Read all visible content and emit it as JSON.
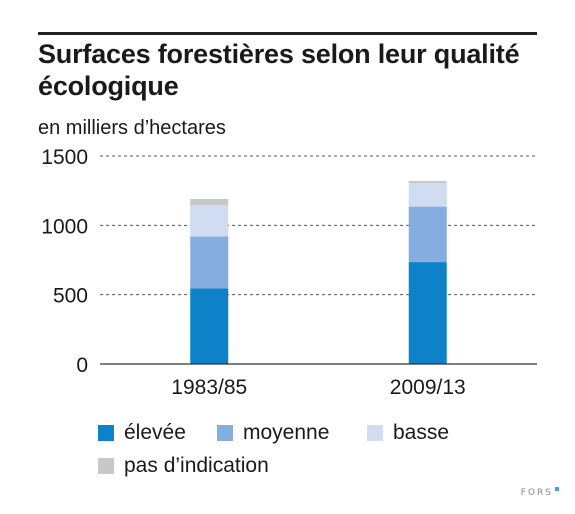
{
  "title": "Surfaces forestières selon leur qualité écologique",
  "brand": "FORS",
  "colors": {
    "elevee": "#0e82c8",
    "moyenne": "#86ade0",
    "basse": "#cfdcf2",
    "na": "#c8c8c8",
    "brand": "#3aa6dd"
  },
  "chart_data": {
    "type": "bar",
    "stacked": true,
    "unit_label": "en milliers d’hectares",
    "categories": [
      "1983/85",
      "2009/13"
    ],
    "ylim": [
      0,
      1500
    ],
    "yticks": [
      0,
      500,
      1000,
      1500
    ],
    "grid": true,
    "legend_position": "bottom",
    "series": [
      {
        "name": "élevée",
        "values": [
          545,
          735
        ]
      },
      {
        "name": "moyenne",
        "values": [
          375,
          400
        ]
      },
      {
        "name": "basse",
        "values": [
          225,
          170
        ]
      },
      {
        "name": "pas d’indication",
        "values": [
          45,
          15
        ]
      }
    ]
  }
}
